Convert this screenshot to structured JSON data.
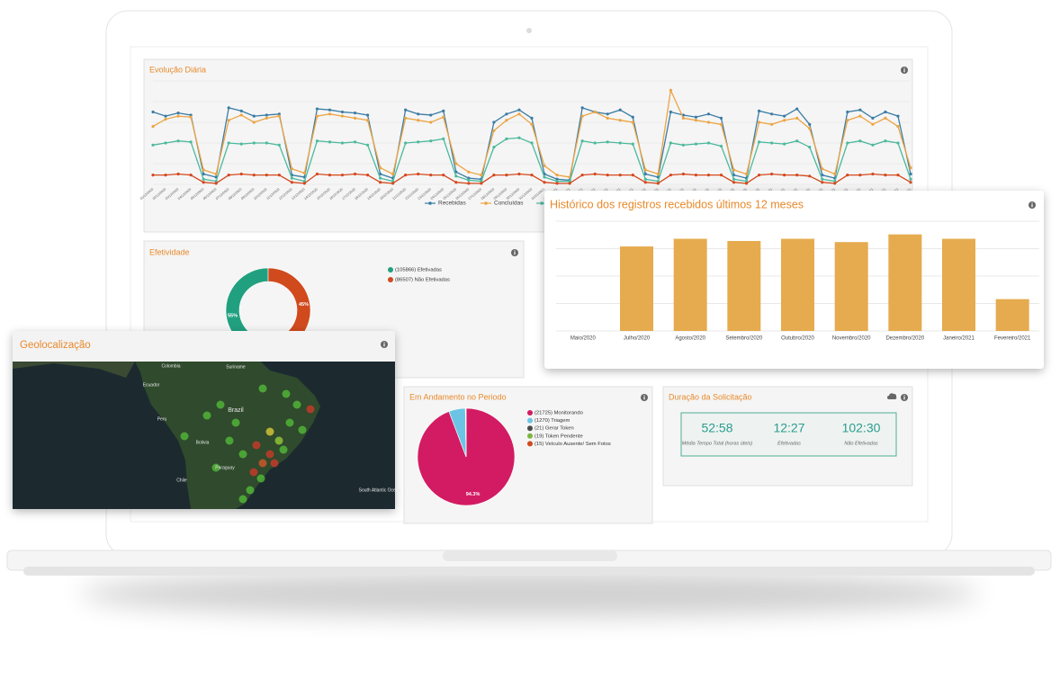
{
  "chart_data": [
    {
      "type": "line",
      "title": "Evolução Diária",
      "categories": [
        "01/12/2020",
        "02/12/2020",
        "03/12/2020",
        "04/12/2020",
        "05/12/2020",
        "06/12/2020",
        "07/12/2020",
        "08/12/2020",
        "09/12/2020",
        "10/12/2020",
        "11/12/2020",
        "12/12/2020",
        "13/12/2020",
        "14/12/2020",
        "15/12/2020",
        "16/12/2020",
        "17/12/2020",
        "18/12/2020",
        "19/12/2020",
        "20/12/2020",
        "21/12/2020",
        "22/12/2020",
        "23/12/2020",
        "24/12/2020",
        "25/12/2020",
        "26/12/2020",
        "27/12/2020",
        "28/12/2020",
        "29/12/2020",
        "30/12/2020",
        "31/12/2020",
        "01/01/2021",
        "02/01/2021",
        "03/01/2021",
        "04/01/2021",
        "05/01/2021",
        "06/01/2021",
        "07/01/2021",
        "08/01/2021",
        "09/01/2021",
        "10/01/2021",
        "11/01/2021",
        "12/01/2021",
        "13/01/2021",
        "14/01/2021",
        "15/01/2021",
        "16/01/2021",
        "17/01/2021",
        "18/01/2021",
        "19/01/2021",
        "20/01/2021",
        "21/01/2021",
        "22/01/2021",
        "23/01/2021",
        "24/01/2021",
        "25/01/2021",
        "26/01/2021",
        "27/01/2021",
        "28/01/2021",
        "29/01/2021",
        "30/01/2021"
      ],
      "ylim": [
        0,
        100
      ],
      "grid": true,
      "series": [
        {
          "name": "Recebidas",
          "color": "#3a7ca5",
          "values": [
            70,
            66,
            69,
            67,
            10,
            7,
            74,
            71,
            66,
            67,
            68,
            9,
            7,
            73,
            72,
            70,
            69,
            67,
            10,
            6,
            72,
            68,
            67,
            71,
            12,
            6,
            5,
            60,
            68,
            72,
            64,
            10,
            5,
            4,
            74,
            70,
            68,
            72,
            65,
            10,
            7,
            70,
            67,
            65,
            68,
            64,
            9,
            6,
            71,
            68,
            66,
            73,
            58,
            9,
            6,
            70,
            72,
            64,
            70,
            66,
            10
          ]
        },
        {
          "name": "Concluídas",
          "color": "#eca544",
          "values": [
            56,
            63,
            66,
            65,
            14,
            10,
            62,
            67,
            60,
            64,
            66,
            15,
            11,
            66,
            68,
            66,
            64,
            62,
            16,
            10,
            64,
            62,
            60,
            65,
            20,
            12,
            9,
            52,
            62,
            68,
            58,
            18,
            9,
            7,
            66,
            70,
            64,
            62,
            60,
            14,
            10,
            91,
            64,
            62,
            60,
            58,
            14,
            10,
            60,
            58,
            62,
            64,
            54,
            15,
            10,
            62,
            66,
            58,
            64,
            56,
            16
          ]
        },
        {
          "color": "#4cb99c",
          "values": [
            38,
            40,
            42,
            41,
            5,
            3,
            40,
            39,
            40,
            40,
            38,
            6,
            3,
            42,
            41,
            40,
            41,
            38,
            6,
            3,
            40,
            41,
            42,
            44,
            8,
            4,
            3,
            36,
            44,
            45,
            40,
            7,
            3,
            3,
            42,
            40,
            41,
            40,
            39,
            5,
            3,
            40,
            38,
            39,
            40,
            37,
            5,
            3,
            41,
            40,
            39,
            42,
            36,
            5,
            3,
            40,
            42,
            38,
            42,
            40,
            5
          ]
        },
        {
          "color": "#d4491e",
          "values": [
            9,
            9,
            10,
            9,
            2,
            1,
            9,
            10,
            9,
            9,
            9,
            2,
            1,
            10,
            9,
            9,
            10,
            9,
            2,
            1,
            9,
            10,
            9,
            9,
            2,
            1,
            1,
            9,
            9,
            10,
            9,
            2,
            1,
            1,
            9,
            10,
            9,
            9,
            9,
            2,
            1,
            9,
            10,
            9,
            9,
            9,
            2,
            1,
            9,
            10,
            9,
            9,
            8,
            2,
            1,
            9,
            9,
            10,
            9,
            9,
            2
          ]
        }
      ]
    },
    {
      "type": "pie",
      "title": "Efetividade",
      "donut": true,
      "categories": [
        "Efetivadas",
        "Não Efetivadas"
      ],
      "values": [
        105866,
        86507
      ],
      "value_labels": [
        "55%",
        "45%"
      ],
      "legend_labels": [
        "(105866) Efetivadas",
        "(86507) Não Efetivadas"
      ],
      "colors": [
        "#21a07f",
        "#d04a1e"
      ]
    },
    {
      "type": "bar",
      "title": "Histórico dos registros recebidos últimos 12 meses",
      "categories": [
        "Maio/2020",
        "Julho/2020",
        "Agosto/2020",
        "Setembro/2020",
        "Outubro/2020",
        "Novembro/2020",
        "Dezembro/2020",
        "Janeiro/2021",
        "Fevereiro/2021"
      ],
      "values": [
        null,
        77,
        84,
        82,
        84,
        81,
        88,
        84,
        29
      ],
      "color": "#e5ab4e",
      "ylim": [
        0,
        100
      ],
      "grid": true
    },
    {
      "type": "pie",
      "title": "Em Andamento no Periodo",
      "categories": [
        "Monitorando",
        "Triagem",
        "Gerar Token",
        "Token Pendente",
        "Veículo Ausente/ Sem Fotos"
      ],
      "values": [
        21725,
        1270,
        21,
        19,
        15
      ],
      "value_labels": [
        "94.3%",
        null,
        null,
        null,
        null
      ],
      "legend_labels": [
        "(21725) Monitorando",
        "(1270) Triagem",
        "(21) Gerar Token",
        "(19) Token Pendente",
        "(15) Veículo Ausente/ Sem Fotos"
      ],
      "colors": [
        "#d21b63",
        "#6cc4e4",
        "#4a4a4a",
        "#7bb73c",
        "#d04a1e"
      ]
    }
  ],
  "map": {
    "title": "Geolocalização",
    "labels": [
      "Colombia",
      "Suriname",
      "Ecuador",
      "Peru",
      "Brazil",
      "Bolivia",
      "Paraguay",
      "Chile",
      "South Atlantic Ocean"
    ]
  },
  "duration": {
    "title": "Duração da Solicitação",
    "metrics": [
      {
        "value": "52:58",
        "label": "Média Tempo Total (horas úteis)"
      },
      {
        "value": "12:27",
        "label": "Efetivadas"
      },
      {
        "value": "102:30",
        "label": "Não Efetivadas"
      }
    ]
  }
}
